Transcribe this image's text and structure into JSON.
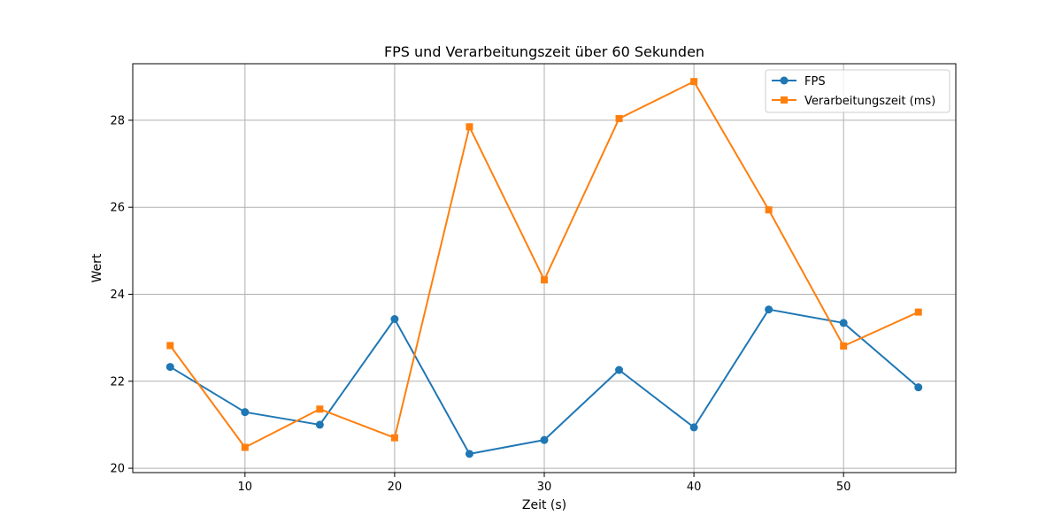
{
  "chart_data": {
    "type": "line",
    "title": "FPS und Verarbeitungszeit über 60 Sekunden",
    "xlabel": "Zeit (s)",
    "ylabel": "Wert",
    "xlim": [
      2.5,
      57.5
    ],
    "ylim": [
      19.9,
      29.3
    ],
    "xticks": [
      10,
      20,
      30,
      40,
      50
    ],
    "yticks": [
      20,
      22,
      24,
      26,
      28
    ],
    "grid": true,
    "legend_position": "top-right",
    "x": [
      5,
      10,
      15,
      20,
      25,
      30,
      35,
      40,
      45,
      50,
      55
    ],
    "series": [
      {
        "name": "FPS",
        "color": "#1f77b4",
        "marker": "circle",
        "values": [
          22.33,
          21.29,
          21.0,
          23.43,
          20.33,
          20.65,
          22.26,
          20.94,
          23.65,
          23.34,
          21.86
        ]
      },
      {
        "name": "Verarbeitungszeit (ms)",
        "color": "#ff7f0e",
        "marker": "square",
        "values": [
          22.82,
          20.48,
          21.36,
          20.7,
          27.85,
          24.33,
          28.04,
          28.89,
          25.94,
          22.81,
          23.59
        ]
      }
    ]
  }
}
